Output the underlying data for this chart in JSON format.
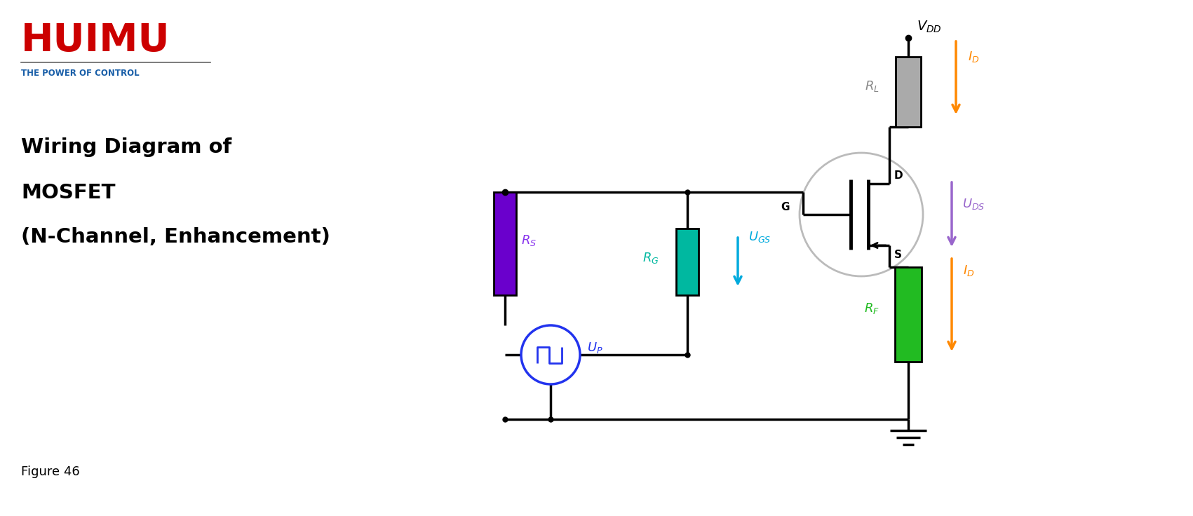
{
  "bg_color": "#ffffff",
  "title_line1": "Wiring Diagram of",
  "title_line2": "MOSFET",
  "title_line3": "(N-Channel, Enhancement)",
  "figure_label": "Figure 46",
  "huimu_red": "#cc0000",
  "huimu_blue": "#1a5fa8",
  "colors": {
    "wire": "#000000",
    "resistor_RS": "#6a00cc",
    "resistor_RG": "#00b8a0",
    "resistor_RF": "#22bb22",
    "resistor_RL": "#aaaaaa",
    "source_blue": "#2233ee",
    "arrow_orange": "#ff8800",
    "arrow_purple": "#9966cc",
    "arrow_cyan": "#00aadd",
    "mosfet_circle": "#bbbbbb",
    "label_RS": "#8833ee",
    "label_RG": "#00b8a0",
    "label_RF": "#22bb22",
    "label_RL": "#888888",
    "label_UP": "#2233ee",
    "label_UGS": "#00aadd",
    "label_UDS": "#9966cc",
    "label_ID": "#ff8800",
    "label_VDD": "#000000"
  }
}
